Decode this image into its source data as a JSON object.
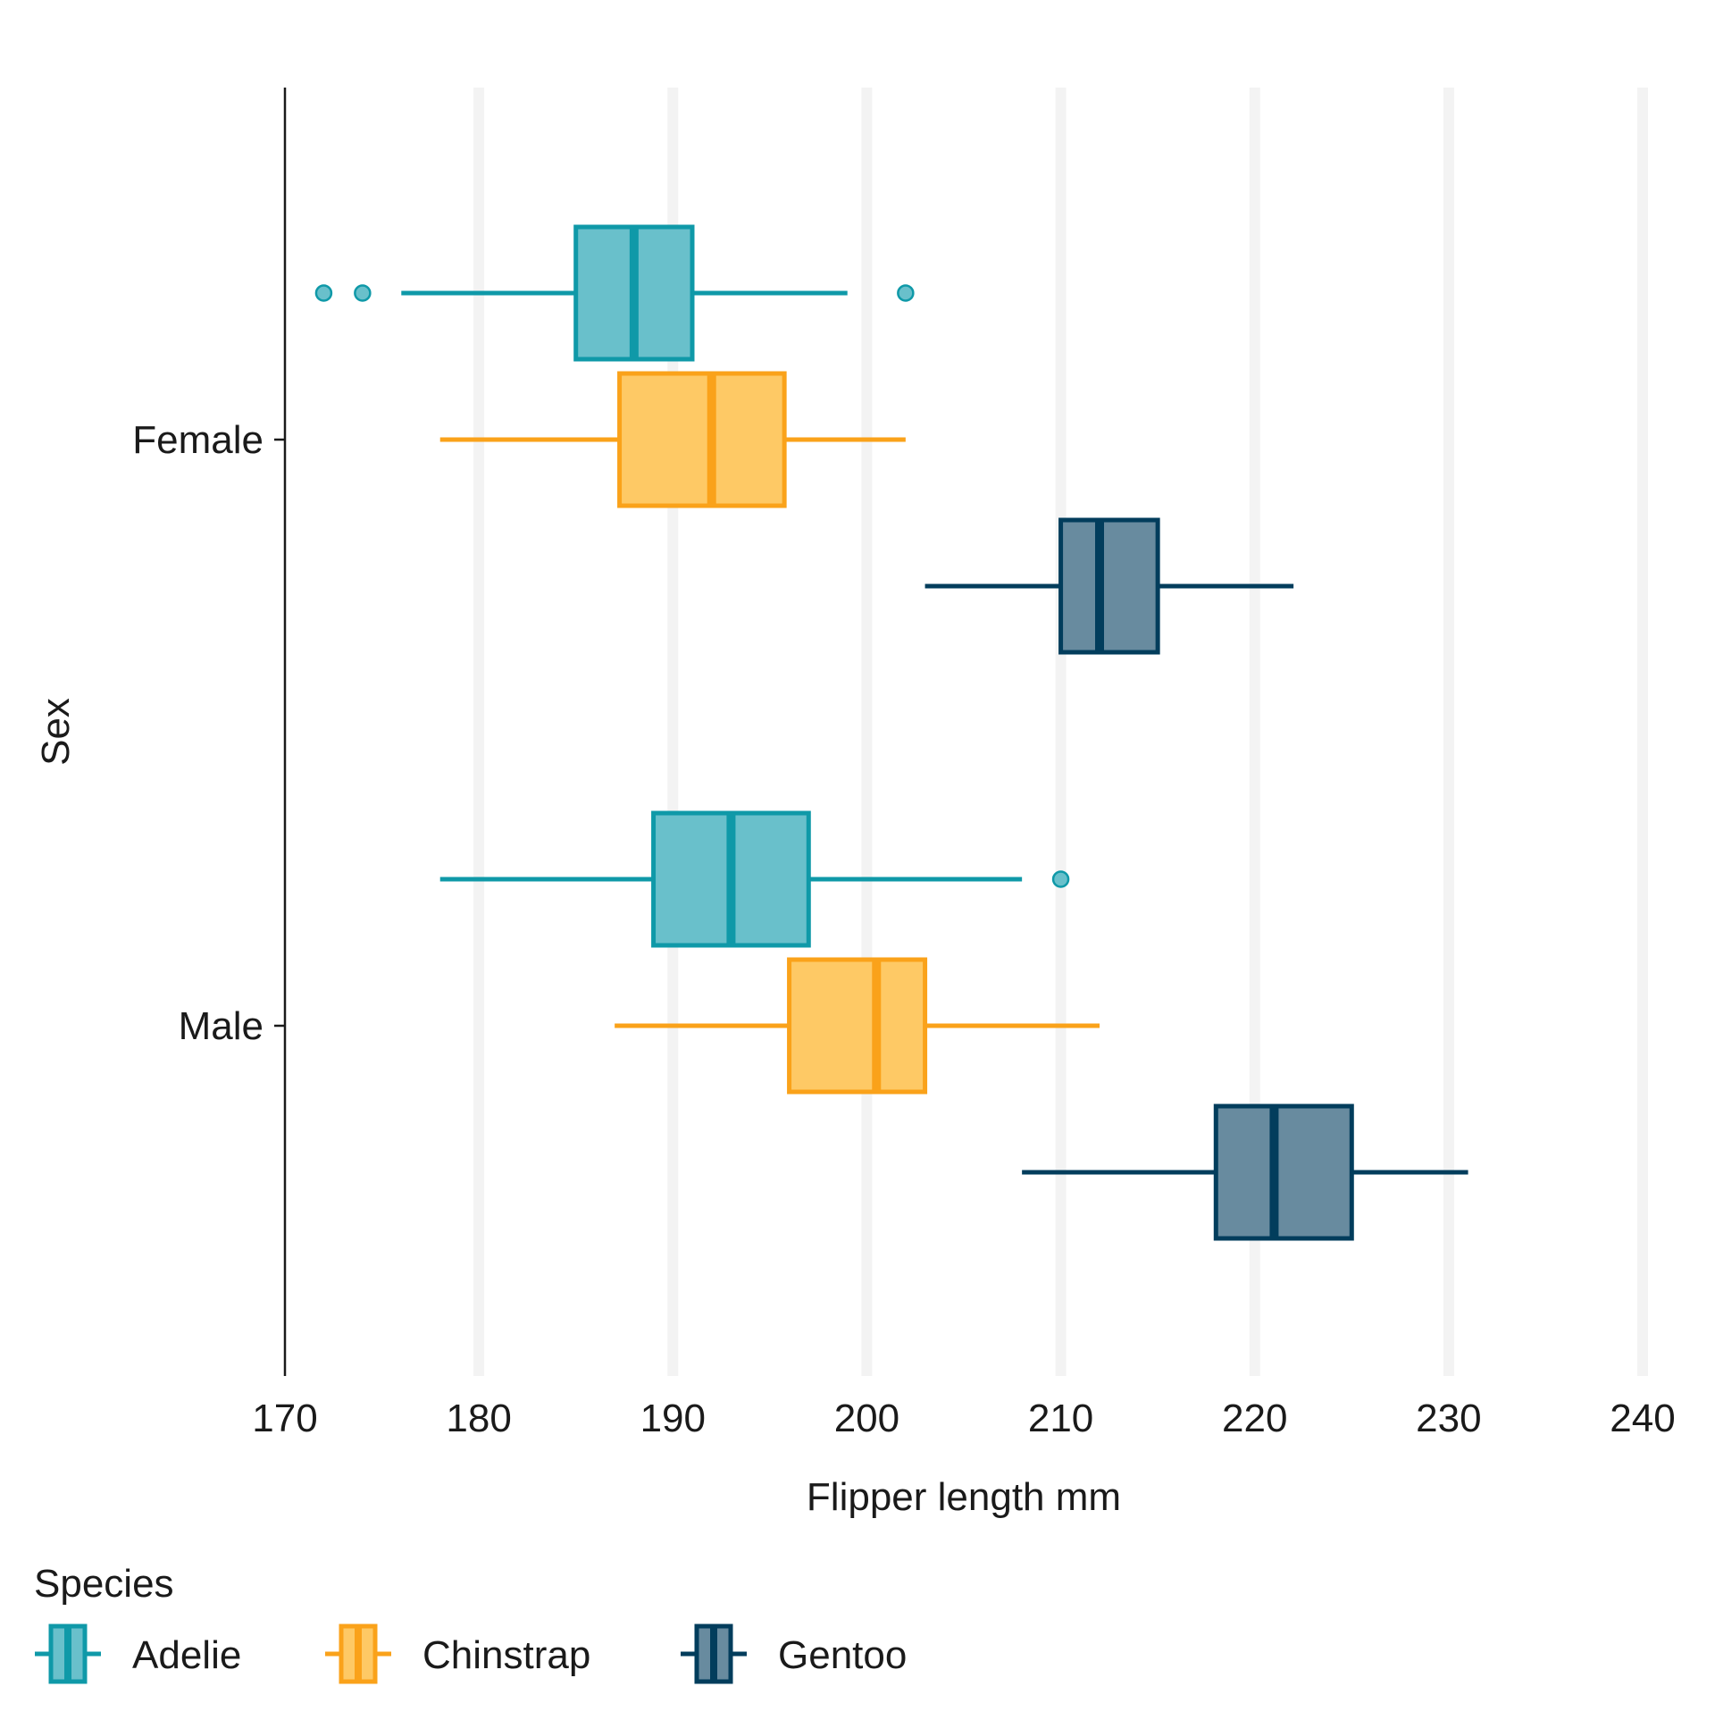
{
  "chart_data": {
    "type": "boxplot",
    "orientation": "horizontal",
    "title": "",
    "xlabel": "Flipper length mm",
    "ylabel": "Sex",
    "xlim": [
      170,
      240
    ],
    "x_ticks": [
      170,
      180,
      190,
      200,
      210,
      220,
      230,
      240
    ],
    "categories": [
      "Female",
      "Male"
    ],
    "grid": "vertical major lines only",
    "legend": {
      "title": "Species",
      "position": "bottom-left"
    },
    "series": [
      {
        "name": "Adelie",
        "color": "#0f99a8",
        "fill": "#69c0cb",
        "boxes": [
          {
            "category": "Female",
            "whisker_low": 176,
            "q1": 185,
            "median": 188,
            "q3": 191,
            "whisker_high": 199,
            "outliers": [
              172,
              174,
              202
            ]
          },
          {
            "category": "Male",
            "whisker_low": 178,
            "q1": 189,
            "median": 193,
            "q3": 197,
            "whisker_high": 208,
            "outliers": [
              210
            ]
          }
        ]
      },
      {
        "name": "Chinstrap",
        "color": "#faa21a",
        "fill": "#fec965",
        "boxes": [
          {
            "category": "Female",
            "whisker_low": 178,
            "q1": 187.25,
            "median": 192,
            "q3": 195.75,
            "whisker_high": 202,
            "outliers": []
          },
          {
            "category": "Male",
            "whisker_low": 187,
            "q1": 196,
            "median": 200.5,
            "q3": 203,
            "whisker_high": 212,
            "outliers": []
          }
        ]
      },
      {
        "name": "Gentoo",
        "color": "#023d5c",
        "fill": "#688b9f",
        "boxes": [
          {
            "category": "Female",
            "whisker_low": 203,
            "q1": 210,
            "median": 212,
            "q3": 215,
            "whisker_high": 222,
            "outliers": []
          },
          {
            "category": "Male",
            "whisker_low": 208,
            "q1": 218,
            "median": 221,
            "q3": 225,
            "whisker_high": 231,
            "outliers": []
          }
        ]
      }
    ]
  }
}
